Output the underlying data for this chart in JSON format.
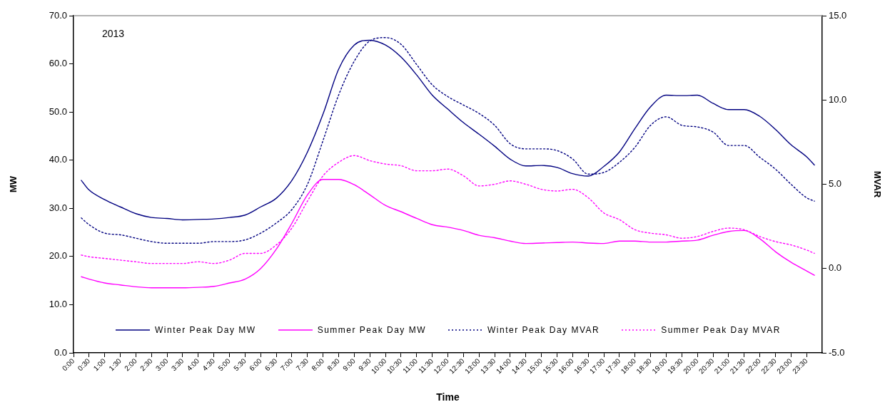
{
  "chart_data": {
    "type": "line",
    "xlabel": "Time",
    "ylabel": "MW",
    "y2label": "MVAR",
    "annotations": [
      "2013"
    ],
    "x": [
      0.25,
      0.5,
      1,
      1.5,
      2,
      2.5,
      3,
      3.5,
      4,
      4.5,
      5,
      5.5,
      6,
      6.5,
      7,
      7.5,
      8,
      8.5,
      9,
      9.5,
      10,
      10.5,
      11,
      11.5,
      12,
      12.5,
      13,
      13.5,
      14,
      14.5,
      15,
      15.5,
      16,
      16.5,
      17,
      17.5,
      18,
      18.5,
      19,
      19.5,
      20,
      20.5,
      21,
      21.5,
      22,
      22.5,
      23,
      23.5,
      23.75
    ],
    "series": [
      {
        "name": "Winter Peak Day MW",
        "color": "#000080",
        "line_style": "solid",
        "values": [
          35.8,
          33.8,
          31.8,
          30.3,
          28.9,
          28.1,
          27.9,
          27.6,
          27.7,
          27.8,
          28.1,
          28.6,
          30.3,
          32.1,
          35.8,
          41.7,
          49.6,
          58.9,
          63.9,
          64.9,
          63.9,
          61.4,
          57.7,
          53.5,
          50.6,
          47.8,
          45.4,
          42.9,
          40.2,
          38.8,
          38.9,
          38.5,
          37.2,
          36.7,
          38.7,
          41.7,
          46.6,
          51.1,
          53.5,
          53.4,
          53.5,
          51.8,
          50.5,
          50.5,
          49.1,
          46.4,
          43.2,
          40.7,
          39.0
        ]
      },
      {
        "name": "Summer Peak Day MW",
        "color": "#ff00ff",
        "line_style": "solid",
        "values": [
          15.8,
          15.3,
          14.5,
          14.1,
          13.7,
          13.5,
          13.5,
          13.5,
          13.6,
          13.8,
          14.5,
          15.3,
          17.5,
          21.5,
          26.9,
          32.8,
          36.0,
          36.0,
          34.9,
          32.8,
          30.6,
          29.3,
          27.9,
          26.6,
          26.1,
          25.4,
          24.4,
          23.9,
          23.2,
          22.7,
          22.8,
          22.9,
          23.0,
          22.8,
          22.7,
          23.2,
          23.2,
          23.0,
          23.0,
          23.2,
          23.4,
          24.4,
          25.2,
          25.4,
          23.7,
          21.0,
          18.8,
          17.0,
          16.1
        ]
      },
      {
        "name": "Winter Peak Day MVAR",
        "color": "#000080",
        "line_style": "dotted",
        "axis": "y2",
        "values": [
          3.0,
          2.6,
          2.1,
          2.0,
          1.8,
          1.6,
          1.5,
          1.5,
          1.5,
          1.6,
          1.6,
          1.7,
          2.1,
          2.7,
          3.5,
          5.0,
          7.6,
          10.3,
          12.3,
          13.5,
          13.7,
          13.3,
          12.1,
          10.9,
          10.2,
          9.7,
          9.2,
          8.5,
          7.4,
          7.1,
          7.1,
          7.0,
          6.5,
          5.6,
          5.7,
          6.3,
          7.2,
          8.5,
          9.0,
          8.5,
          8.4,
          8.1,
          7.3,
          7.3,
          6.6,
          5.9,
          5.0,
          4.2,
          4.0
        ]
      },
      {
        "name": "Summer Peak Day MVAR",
        "color": "#ff00ff",
        "line_style": "dotted",
        "axis": "y2",
        "values": [
          0.8,
          0.7,
          0.6,
          0.5,
          0.4,
          0.3,
          0.3,
          0.3,
          0.4,
          0.3,
          0.5,
          0.9,
          0.9,
          1.4,
          2.4,
          4.0,
          5.5,
          6.3,
          6.7,
          6.4,
          6.2,
          6.1,
          5.8,
          5.8,
          5.9,
          5.5,
          4.9,
          5.0,
          5.2,
          5.0,
          4.7,
          4.6,
          4.7,
          4.2,
          3.3,
          2.9,
          2.3,
          2.1,
          2.0,
          1.8,
          1.9,
          2.2,
          2.4,
          2.3,
          1.9,
          1.6,
          1.4,
          1.1,
          0.9
        ]
      }
    ],
    "xlim": [
      0,
      24
    ],
    "xticks": [
      {
        "value": 0,
        "label": "0:00"
      },
      {
        "value": 0.5,
        "label": "0:30"
      },
      {
        "value": 1,
        "label": "1:00"
      },
      {
        "value": 1.5,
        "label": "1:30"
      },
      {
        "value": 2,
        "label": "2:00"
      },
      {
        "value": 2.5,
        "label": "2:30"
      },
      {
        "value": 3,
        "label": "3:00"
      },
      {
        "value": 3.5,
        "label": "3:30"
      },
      {
        "value": 4,
        "label": "4:00"
      },
      {
        "value": 4.5,
        "label": "4:30"
      },
      {
        "value": 5,
        "label": "5:00"
      },
      {
        "value": 5.5,
        "label": "5:30"
      },
      {
        "value": 6,
        "label": "6:00"
      },
      {
        "value": 6.5,
        "label": "6:30"
      },
      {
        "value": 7,
        "label": "7:00"
      },
      {
        "value": 7.5,
        "label": "7:30"
      },
      {
        "value": 8,
        "label": "8:00"
      },
      {
        "value": 8.5,
        "label": "8:30"
      },
      {
        "value": 9,
        "label": "9:00"
      },
      {
        "value": 9.5,
        "label": "9:30"
      },
      {
        "value": 10,
        "label": "10:00"
      },
      {
        "value": 10.5,
        "label": "10:30"
      },
      {
        "value": 11,
        "label": "11:00"
      },
      {
        "value": 11.5,
        "label": "11:30"
      },
      {
        "value": 12,
        "label": "12:00"
      },
      {
        "value": 12.5,
        "label": "12:30"
      },
      {
        "value": 13,
        "label": "13:00"
      },
      {
        "value": 13.5,
        "label": "13:30"
      },
      {
        "value": 14,
        "label": "14:00"
      },
      {
        "value": 14.5,
        "label": "14:30"
      },
      {
        "value": 15,
        "label": "15:00"
      },
      {
        "value": 15.5,
        "label": "15:30"
      },
      {
        "value": 16,
        "label": "16:00"
      },
      {
        "value": 16.5,
        "label": "16:30"
      },
      {
        "value": 17,
        "label": "17:00"
      },
      {
        "value": 17.5,
        "label": "17:30"
      },
      {
        "value": 18,
        "label": "18:00"
      },
      {
        "value": 18.5,
        "label": "18:30"
      },
      {
        "value": 19,
        "label": "19:00"
      },
      {
        "value": 19.5,
        "label": "19:30"
      },
      {
        "value": 20,
        "label": "20:00"
      },
      {
        "value": 20.5,
        "label": "20:30"
      },
      {
        "value": 21,
        "label": "21:00"
      },
      {
        "value": 21.5,
        "label": "21:30"
      },
      {
        "value": 22,
        "label": "22:00"
      },
      {
        "value": 22.5,
        "label": "22:30"
      },
      {
        "value": 23,
        "label": "23:00"
      },
      {
        "value": 23.5,
        "label": "23:30"
      }
    ],
    "ylim": [
      0,
      70
    ],
    "yticks": [
      {
        "value": 0,
        "label": "0.0"
      },
      {
        "value": 10,
        "label": "10.0"
      },
      {
        "value": 20,
        "label": "20.0"
      },
      {
        "value": 30,
        "label": "30.0"
      },
      {
        "value": 40,
        "label": "40.0"
      },
      {
        "value": 50,
        "label": "50.0"
      },
      {
        "value": 60,
        "label": "60.0"
      },
      {
        "value": 70,
        "label": "70.0"
      }
    ],
    "y2lim": [
      -5,
      15
    ],
    "y2ticks": [
      {
        "value": -5,
        "label": "-5.0"
      },
      {
        "value": 0,
        "label": "0.0"
      },
      {
        "value": 5,
        "label": "5.0"
      },
      {
        "value": 10,
        "label": "10.0"
      },
      {
        "value": 15,
        "label": "15.0"
      }
    ],
    "grid": false,
    "legend": "bottom",
    "marker": "none"
  }
}
